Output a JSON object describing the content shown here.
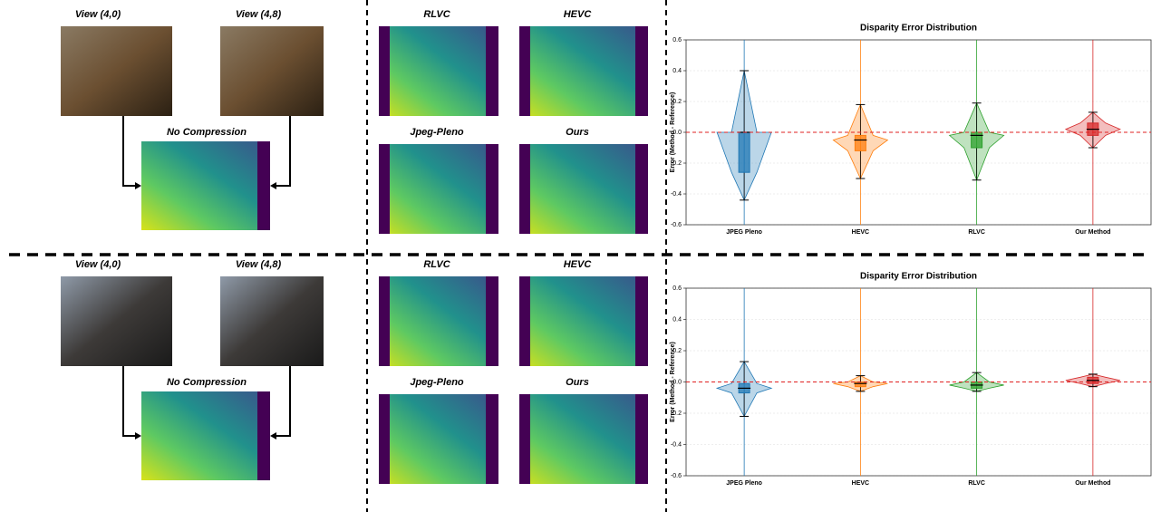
{
  "panels": [
    {
      "views": [
        "View (4,0)",
        "View (4,8)"
      ],
      "reference": "No Compression",
      "methods": [
        "RLVC",
        "HEVC",
        "Jpeg-Pleno",
        "Ours"
      ]
    },
    {
      "views": [
        "View (4,0)",
        "View (4,8)"
      ],
      "reference": "No Compression",
      "methods": [
        "RLVC",
        "HEVC",
        "Jpeg-Pleno",
        "Ours"
      ]
    }
  ],
  "chart_data": [
    {
      "type": "violin",
      "title": "Disparity Error Distribution",
      "y_label": "Error (Method - Reference)",
      "categories": [
        "JPEG Pleno",
        "HEVC",
        "RLVC",
        "Our Method"
      ],
      "colors": [
        "#1f77b4",
        "#ff7f0e",
        "#2ca02c",
        "#d62728"
      ],
      "ylim": [
        -0.6,
        0.6
      ],
      "yticks": [
        -0.6,
        -0.4,
        -0.2,
        {
          "value": 0,
          "label": "0.0"
        },
        0.2,
        0.4,
        0.6
      ],
      "grid": true,
      "reference_line": 0,
      "whisker_low": [
        -0.44,
        -0.3,
        -0.31,
        -0.1
      ],
      "q1": [
        -0.26,
        -0.12,
        -0.1,
        -0.02
      ],
      "median": [
        0,
        -0.05,
        -0.02,
        0.02
      ],
      "q3": [
        0,
        -0.02,
        0,
        0.06
      ],
      "whisker_high": [
        0.4,
        0.18,
        0.19,
        0.13
      ]
    },
    {
      "type": "violin",
      "title": "Disparity Error Distribution",
      "y_label": "Error (Method - Reference)",
      "categories": [
        "JPEG Pleno",
        "HEVC",
        "RLVC",
        "Our Method"
      ],
      "colors": [
        "#1f77b4",
        "#ff7f0e",
        "#2ca02c",
        "#d62728"
      ],
      "ylim": [
        -0.6,
        0.6
      ],
      "yticks": [
        -0.6,
        -0.4,
        -0.2,
        {
          "value": 0,
          "label": "0.0"
        },
        0.2,
        0.4,
        0.6
      ],
      "grid": true,
      "reference_line": 0,
      "whisker_low": [
        -0.22,
        -0.06,
        -0.06,
        -0.03
      ],
      "q1": [
        -0.07,
        -0.03,
        -0.04,
        -0.01
      ],
      "median": [
        -0.04,
        -0.01,
        -0.02,
        0.01
      ],
      "q3": [
        -0.01,
        0,
        0,
        0.03
      ],
      "whisker_high": [
        0.13,
        0.04,
        0.06,
        0.05
      ]
    }
  ]
}
